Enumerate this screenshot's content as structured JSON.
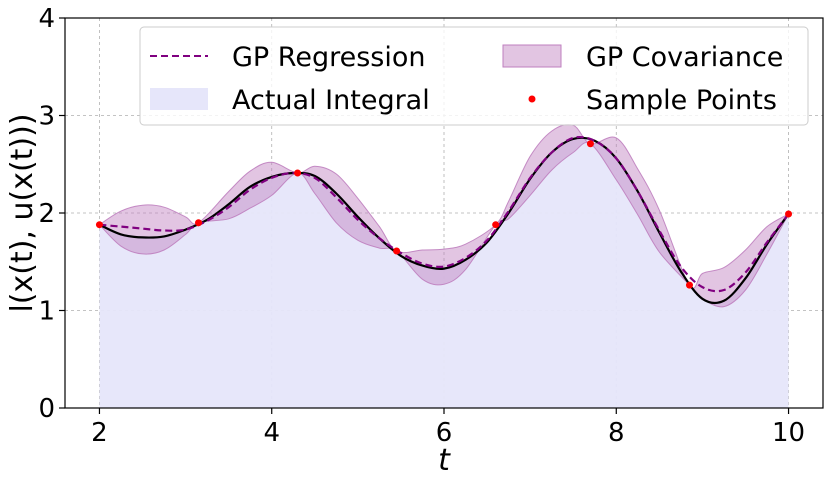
{
  "chart_data": {
    "type": "line",
    "xlabel": "t",
    "ylabel": "l(x(t), u(x(t)))",
    "xlim": [
      1.6,
      10.4
    ],
    "ylim": [
      0,
      4
    ],
    "xticks": [
      2,
      4,
      6,
      8,
      10
    ],
    "yticks": [
      0,
      1,
      2,
      3,
      4
    ],
    "grid": true,
    "legend_placement": "top-center",
    "legend": [
      {
        "label": "GP Regression",
        "kind": "dashed-line",
        "color": "#800080"
      },
      {
        "label": "GP Covariance",
        "kind": "band",
        "color": "#bf7fbf"
      },
      {
        "label": "Actual Integral",
        "kind": "area",
        "color": "#e6e6fa"
      },
      {
        "label": "Sample Points",
        "kind": "point",
        "color": "#ff0000"
      }
    ],
    "colors": {
      "actual_line": "#000000",
      "actual_fill": "#e6e6fa",
      "gp_mean": "#800080",
      "gp_band": "#bf7fbf",
      "samples": "#ff0000",
      "grid": "#b0b0b0"
    },
    "actual_curve": {
      "x": [
        2.0,
        2.25,
        2.5,
        2.75,
        3.0,
        3.25,
        3.5,
        3.75,
        4.0,
        4.25,
        4.5,
        4.75,
        5.0,
        5.25,
        5.5,
        5.75,
        6.0,
        6.25,
        6.5,
        6.75,
        7.0,
        7.25,
        7.5,
        7.75,
        8.0,
        8.25,
        8.5,
        8.75,
        9.0,
        9.25,
        9.5,
        9.75,
        10.0
      ],
      "y": [
        1.88,
        1.78,
        1.75,
        1.76,
        1.83,
        1.93,
        2.09,
        2.27,
        2.37,
        2.41,
        2.38,
        2.2,
        1.96,
        1.74,
        1.56,
        1.46,
        1.43,
        1.52,
        1.7,
        2.0,
        2.35,
        2.62,
        2.76,
        2.74,
        2.56,
        2.22,
        1.8,
        1.4,
        1.12,
        1.1,
        1.33,
        1.68,
        1.99
      ]
    },
    "gp_mean": {
      "x": [
        2.0,
        2.25,
        2.5,
        2.75,
        3.0,
        3.25,
        3.5,
        3.75,
        4.0,
        4.25,
        4.5,
        4.75,
        5.0,
        5.25,
        5.5,
        5.75,
        6.0,
        6.25,
        6.5,
        6.75,
        7.0,
        7.25,
        7.5,
        7.75,
        8.0,
        8.25,
        8.5,
        8.75,
        9.0,
        9.25,
        9.5,
        9.75,
        10.0
      ],
      "y": [
        1.88,
        1.86,
        1.84,
        1.82,
        1.83,
        1.92,
        2.06,
        2.24,
        2.36,
        2.41,
        2.36,
        2.16,
        1.93,
        1.74,
        1.59,
        1.48,
        1.45,
        1.54,
        1.72,
        2.02,
        2.36,
        2.62,
        2.77,
        2.74,
        2.56,
        2.22,
        1.82,
        1.45,
        1.24,
        1.21,
        1.39,
        1.7,
        1.99
      ]
    },
    "gp_band": {
      "x": [
        2.0,
        2.25,
        2.5,
        2.75,
        3.0,
        3.15,
        3.5,
        3.75,
        4.0,
        4.3,
        4.5,
        4.75,
        5.0,
        5.25,
        5.45,
        5.75,
        6.0,
        6.25,
        6.6,
        6.75,
        7.0,
        7.25,
        7.5,
        7.7,
        8.0,
        8.25,
        8.5,
        8.85,
        9.0,
        9.25,
        9.5,
        9.75,
        10.0
      ],
      "lower": [
        1.88,
        1.66,
        1.58,
        1.62,
        1.78,
        1.9,
        1.94,
        2.05,
        2.18,
        2.41,
        2.2,
        1.9,
        1.72,
        1.64,
        1.61,
        1.32,
        1.27,
        1.42,
        1.88,
        1.94,
        2.18,
        2.44,
        2.62,
        2.71,
        2.34,
        1.98,
        1.6,
        1.26,
        1.12,
        1.04,
        1.21,
        1.58,
        1.99
      ],
      "upper": [
        1.88,
        2.02,
        2.08,
        2.06,
        1.96,
        1.9,
        2.22,
        2.43,
        2.52,
        2.41,
        2.48,
        2.4,
        2.15,
        1.86,
        1.61,
        1.62,
        1.63,
        1.68,
        1.88,
        2.12,
        2.58,
        2.84,
        2.9,
        2.71,
        2.77,
        2.45,
        2.03,
        1.26,
        1.38,
        1.44,
        1.62,
        1.86,
        1.99
      ]
    },
    "sample_points": {
      "x": [
        2.0,
        3.15,
        4.3,
        5.45,
        6.6,
        7.7,
        8.85,
        10.0
      ],
      "y": [
        1.88,
        1.9,
        2.41,
        1.61,
        1.88,
        2.71,
        1.26,
        1.99
      ]
    }
  }
}
